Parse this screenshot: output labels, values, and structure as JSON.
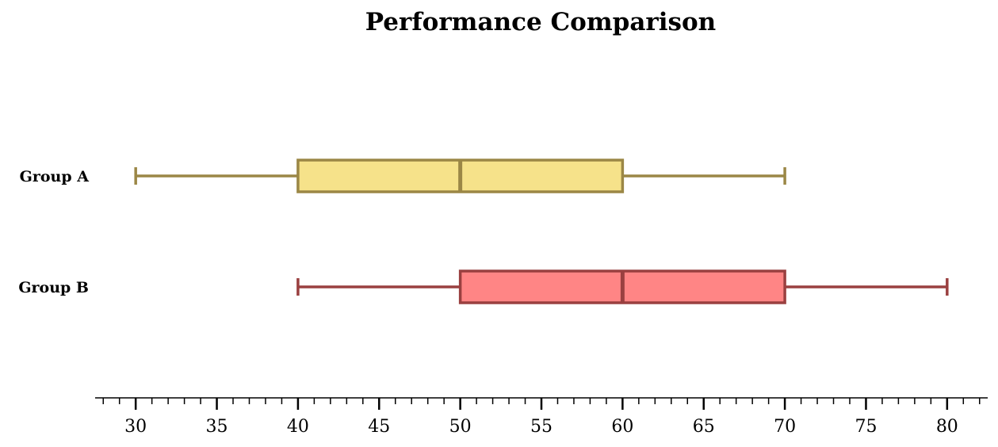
{
  "chart_data": {
    "type": "boxplot",
    "orientation": "horizontal",
    "title": "Performance Comparison",
    "xlabel": "",
    "ylabel": "",
    "xlim": [
      27.5,
      82.5
    ],
    "major_ticks": [
      30,
      35,
      40,
      45,
      50,
      55,
      60,
      65,
      70,
      75,
      80
    ],
    "minor_tick_step": 1,
    "grid": false,
    "series": [
      {
        "name": "Group A",
        "min": 30,
        "q1": 40,
        "median": 50,
        "q3": 60,
        "max": 70,
        "fill_color": "#f6e28a",
        "edge_color": "#9b8746"
      },
      {
        "name": "Group B",
        "min": 40,
        "q1": 50,
        "median": 60,
        "q3": 70,
        "max": 80,
        "fill_color": "#ff8585",
        "edge_color": "#9a4040"
      }
    ]
  }
}
